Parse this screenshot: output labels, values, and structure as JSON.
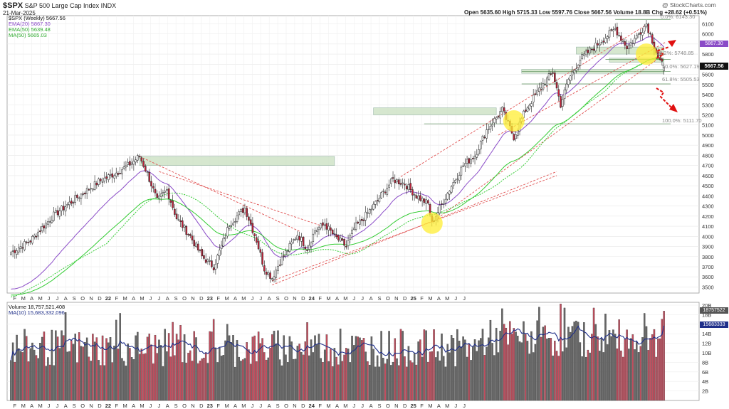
{
  "header": {
    "symbol": "$SPX",
    "name": "S&P 500 Large Cap Index",
    "exchange": "INDX",
    "date": "21-Mar-2025",
    "watermark": "@ StockCharts.com",
    "ohlc_text": "Open 5635.60  High 5715.33  Low 5597.76  Close 5667.56  Volume 18.8B  Chg +28.62 (+0.51%)"
  },
  "legend": {
    "main": "$SPX (Weekly) 5667.56",
    "ema20": "EMA(20) 5867.30",
    "ema50": "EMA(50) 5639.48",
    "ma50": "MA(50) 5665.03",
    "volume": "Volume 18,757,521,408",
    "volma": "MA(10) 15,683,332,096"
  },
  "price_badges": {
    "close": "5667.56",
    "ema20": "5867.30",
    "vol": "18757522",
    "volma": "15683333"
  },
  "fib_labels": {
    "f38": "38.2%: 5748.85",
    "f50": "50.0%: 5627.19",
    "f61": "61.8%: 5505.53",
    "f100": "100.0%: 5111.70",
    "f0": "0.0%: 6143.30"
  },
  "colors": {
    "up": "#ffffff",
    "down": "#c0243b",
    "candle_edge": "#222222",
    "ema20": "#8a4bc7",
    "ema50": "#33cc33",
    "ma50": "#33cc33",
    "vol_up": "#666666",
    "vol_down": "#c24d5e",
    "vol_ma": "#1f2f8a",
    "trend": "#e05050",
    "zone": "#cfe3c7",
    "highlight": "#ffee33"
  },
  "chart_data": {
    "type": "candlestick",
    "timeframe": "weekly",
    "y_ticks": [
      3500,
      3600,
      3700,
      3800,
      3900,
      4000,
      4100,
      4200,
      4300,
      4400,
      4500,
      4600,
      4700,
      4800,
      4900,
      5000,
      5100,
      5200,
      5300,
      5400,
      5500,
      5600,
      5700,
      5800,
      5900,
      6000,
      6100
    ],
    "volume_ticks": [
      "2B",
      "4B",
      "6B",
      "8B",
      "10B",
      "12B",
      "14B",
      "16B",
      "18B",
      "20B"
    ],
    "x_labels": [
      "F",
      "M",
      "A",
      "M",
      "J",
      "J",
      "A",
      "S",
      "O",
      "N",
      "D",
      "22",
      "F",
      "M",
      "A",
      "M",
      "J",
      "J",
      "A",
      "S",
      "O",
      "N",
      "D",
      "23",
      "F",
      "M",
      "A",
      "M",
      "J",
      "J",
      "A",
      "S",
      "O",
      "N",
      "D",
      "24",
      "F",
      "M",
      "A",
      "M",
      "J",
      "J",
      "A",
      "S",
      "O",
      "N",
      "D",
      "25",
      "F",
      "M",
      "A",
      "M",
      "J",
      "J"
    ],
    "waypoints": [
      [
        0,
        3840
      ],
      [
        10,
        3960
      ],
      [
        22,
        4210
      ],
      [
        35,
        4400
      ],
      [
        45,
        4540
      ],
      [
        55,
        4640
      ],
      [
        60,
        4700
      ],
      [
        66,
        4790
      ],
      [
        70,
        4620
      ],
      [
        75,
        4350
      ],
      [
        80,
        4460
      ],
      [
        85,
        4180
      ],
      [
        92,
        4000
      ],
      [
        98,
        3800
      ],
      [
        104,
        3700
      ],
      [
        108,
        3900
      ],
      [
        112,
        4120
      ],
      [
        120,
        4280
      ],
      [
        126,
        3960
      ],
      [
        130,
        3680
      ],
      [
        134,
        3590
      ],
      [
        138,
        3750
      ],
      [
        143,
        3900
      ],
      [
        147,
        4020
      ],
      [
        152,
        3880
      ],
      [
        156,
        4060
      ],
      [
        161,
        4120
      ],
      [
        166,
        4000
      ],
      [
        172,
        3900
      ],
      [
        176,
        4080
      ],
      [
        180,
        4160
      ],
      [
        186,
        4300
      ],
      [
        192,
        4460
      ],
      [
        196,
        4560
      ],
      [
        202,
        4520
      ],
      [
        208,
        4400
      ],
      [
        214,
        4320
      ],
      [
        216,
        4130
      ],
      [
        220,
        4280
      ],
      [
        226,
        4500
      ],
      [
        232,
        4700
      ],
      [
        238,
        4800
      ],
      [
        244,
        5050
      ],
      [
        252,
        5250
      ],
      [
        258,
        4980
      ],
      [
        264,
        5250
      ],
      [
        272,
        5480
      ],
      [
        278,
        5620
      ],
      [
        282,
        5300
      ],
      [
        286,
        5550
      ],
      [
        292,
        5750
      ],
      [
        298,
        5850
      ],
      [
        304,
        5950
      ],
      [
        310,
        6050
      ],
      [
        316,
        5870
      ],
      [
        320,
        5950
      ],
      [
        326,
        6100
      ],
      [
        332,
        5770
      ],
      [
        335,
        5660
      ]
    ],
    "ema20_last": 5867.3,
    "ema50_last": 5639.48,
    "ma50_last": 5665.03,
    "fib_levels": [
      6143.3,
      5748.85,
      5627.19,
      5505.53,
      5111.7
    ],
    "last_candle": {
      "open": 5635.6,
      "high": 5715.33,
      "low": 5597.76,
      "close": 5667.56,
      "volume": 18757521408
    },
    "vol_ma_last": 15683332096
  }
}
